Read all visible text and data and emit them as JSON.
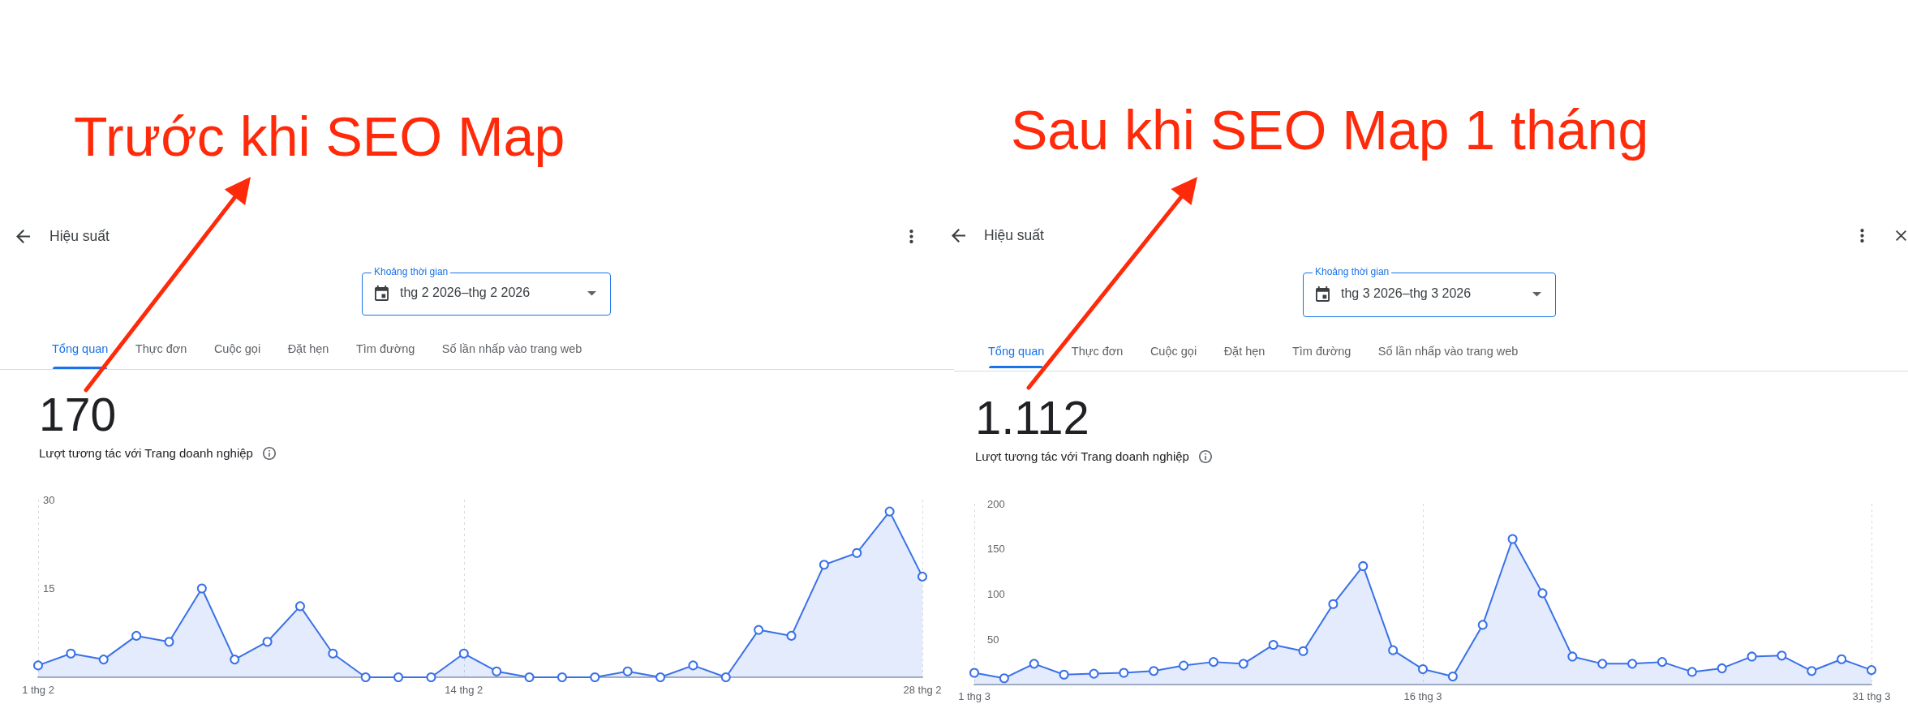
{
  "chart_data": [
    {
      "type": "area",
      "title": "Trước khi SEO Map",
      "subtitle": "Lượt tương tác với Trang doanh nghiệp",
      "annotations": [
        "Hiệu suất",
        "Khoảng thời gian",
        "thg 2 2026–thg 2 2026",
        "Tổng quan",
        "Thực đơn",
        "Cuộc gọi",
        "Đặt hẹn",
        "Tìm đường",
        "Số lần nhấp vào trang web",
        "170"
      ],
      "categories": [
        "1 thg 2",
        null,
        null,
        null,
        null,
        null,
        null,
        null,
        null,
        null,
        null,
        null,
        null,
        "14 thg 2",
        null,
        null,
        null,
        null,
        null,
        null,
        null,
        null,
        null,
        null,
        null,
        null,
        null,
        "28 thg 2"
      ],
      "values": [
        2,
        4,
        3,
        7,
        6,
        15,
        3,
        6,
        12,
        4,
        0,
        0,
        0,
        4,
        1,
        0,
        0,
        0,
        1,
        0,
        2,
        0,
        8,
        7,
        19,
        21,
        28,
        17
      ],
      "color": "#3a71e8",
      "ylim": [
        0,
        30
      ],
      "yticks": [
        15,
        30
      ],
      "grid": "x",
      "marker": "circle"
    },
    {
      "type": "area",
      "title": "Sau khi SEO Map 1 tháng",
      "subtitle": "Lượt tương tác với Trang doanh nghiệp",
      "annotations": [
        "Hiệu suất",
        "Khoảng thời gian",
        "thg 3 2026–thg 3 2026",
        "Tổng quan",
        "Thực đơn",
        "Cuộc gọi",
        "Đặt hẹn",
        "Tìm đường",
        "Số lần nhấp vào trang web",
        "1.112"
      ],
      "categories": [
        "1 thg 3",
        null,
        null,
        null,
        null,
        null,
        null,
        null,
        null,
        null,
        null,
        null,
        null,
        null,
        null,
        "16 thg 3",
        null,
        null,
        null,
        null,
        null,
        null,
        null,
        null,
        null,
        null,
        null,
        null,
        null,
        null,
        "31 thg 3"
      ],
      "values": [
        13,
        7,
        23,
        11,
        12,
        13,
        15,
        21,
        25,
        23,
        44,
        37,
        89,
        131,
        38,
        17,
        9,
        66,
        161,
        101,
        31,
        23,
        23,
        25,
        14,
        18,
        31,
        32,
        15,
        28,
        16
      ],
      "color": "#3a71e8",
      "ylim": [
        0,
        200
      ],
      "yticks": [
        50,
        100,
        150,
        200
      ],
      "grid": "x",
      "marker": "circle"
    }
  ]
}
